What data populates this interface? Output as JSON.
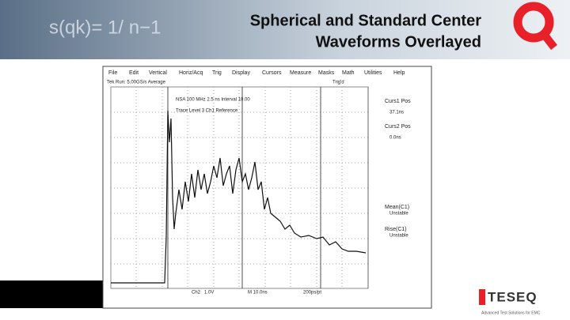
{
  "header": {
    "title_line1": "Spherical and Standard Center",
    "title_line2": "Waveforms Overlayed",
    "formula": "s(qk)= 1/ n−1"
  },
  "scope": {
    "menu": [
      "File",
      "Edit",
      "Vertical",
      "Horiz/Acq",
      "Trig",
      "Display",
      "Cursors",
      "Measure",
      "Masks",
      "Math",
      "Utilities",
      "Help"
    ],
    "status_left": "Tek Run: 5.00GS/s Average",
    "status_right": "Trig'd",
    "readout_line1": "NSA 100 MHz 2.5 ns Interval 10.00",
    "readout_line2": "Trace Level 3 Ch1 Reference",
    "panel": [
      "Curs1 Pos",
      "37.1ns",
      "Curs2 Pos",
      "0.0ns",
      "Mean(C1)",
      "Unstable",
      "Rise(C1)",
      "Unstable"
    ],
    "footer": [
      "Ch2",
      "1.0V",
      "M 10.0ns",
      "200ps/pt"
    ]
  },
  "logo": {
    "brand": "TESEQ",
    "tagline": "Advanced Test Solutions for EMC"
  }
}
